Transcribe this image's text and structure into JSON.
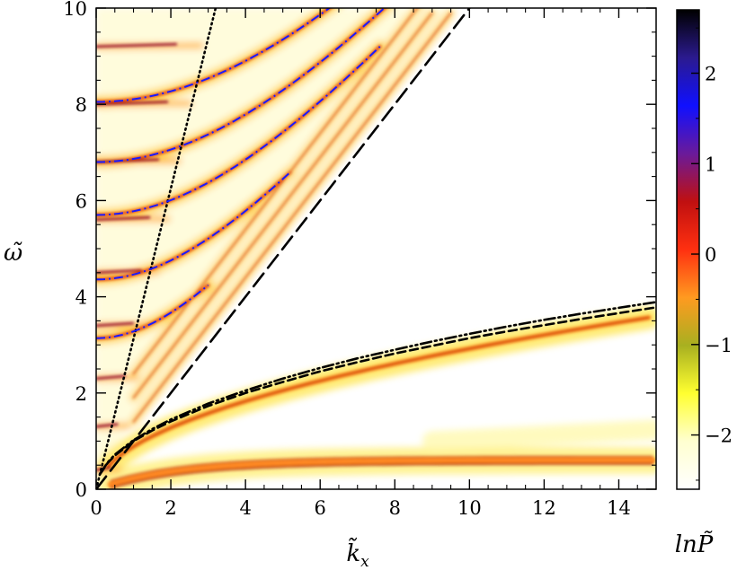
{
  "chart_data": {
    "type": "heatmap",
    "title": "",
    "xlabel": "k̃",
    "xlabel_subscript": "x",
    "ylabel": "ω̃",
    "colorbar_label": "lnP̃",
    "xlim": [
      0,
      15
    ],
    "ylim": [
      0,
      10
    ],
    "xticks": [
      "0",
      "2",
      "4",
      "6",
      "8",
      "10",
      "12",
      "14"
    ],
    "yticks": [
      "0",
      "2",
      "4",
      "6",
      "8",
      "10"
    ],
    "colorbar_range": [
      -2.6,
      2.7
    ],
    "colorbar_ticks": [
      "2",
      "1",
      "0",
      "−1",
      "−2"
    ],
    "colorbar_colors": [
      "#000000",
      "#2b1a8f",
      "#1010ff",
      "#6a1a9a",
      "#c01010",
      "#ff3010",
      "#ff9a20",
      "#a8b020",
      "#ffff30",
      "#ffffd0",
      "#ffffff"
    ],
    "series": [
      {
        "style": "dotted",
        "color": "#000000",
        "x": [
          0,
          3.2
        ],
        "y": [
          0,
          10
        ]
      },
      {
        "style": "long-dash",
        "color": "#000000",
        "x": [
          0,
          10,
          15
        ],
        "y": [
          0,
          10,
          15
        ]
      },
      {
        "style": "dash-dot-dot",
        "color": "#000000",
        "x": [
          0.1,
          0.3,
          0.5,
          1,
          1.5,
          2,
          3,
          4,
          5,
          6,
          7,
          8,
          9,
          10,
          11,
          12,
          13,
          14,
          15
        ],
        "y": [
          0.32,
          0.55,
          0.72,
          1.02,
          1.25,
          1.45,
          1.78,
          2.05,
          2.3,
          2.52,
          2.72,
          2.9,
          3.07,
          3.23,
          3.38,
          3.52,
          3.65,
          3.77,
          3.89
        ]
      },
      {
        "style": "dashed",
        "color": "#000000",
        "x": [
          0.1,
          0.3,
          0.5,
          1,
          1.5,
          2,
          3,
          4,
          5,
          6,
          7,
          8,
          9,
          10,
          11,
          12,
          13,
          14,
          15
        ],
        "y": [
          0.31,
          0.54,
          0.7,
          1.0,
          1.22,
          1.41,
          1.73,
          2.0,
          2.23,
          2.45,
          2.64,
          2.82,
          2.98,
          3.14,
          3.28,
          3.41,
          3.54,
          3.66,
          3.78
        ]
      },
      {
        "style": "dash-dot",
        "color": "#1a1aff",
        "modes_n": [
          1,
          2,
          3,
          4,
          5
        ],
        "mode_intercepts": [
          3.14,
          4.36,
          5.7,
          6.8,
          8.05
        ],
        "x_start": 0,
        "x_end": [
          3.0,
          5.2,
          7.6,
          9.3,
          9.9
        ]
      }
    ],
    "power_ridges": [
      {
        "kind": "f-mode-ridge",
        "x": [
          0.5,
          15
        ],
        "y": [
          0.7,
          3.35
        ]
      },
      {
        "kind": "low-frequency-band",
        "x": [
          0.5,
          15
        ],
        "y": [
          0.35,
          0.6
        ]
      },
      {
        "kind": "vertical-band-peaks-omega",
        "y": [
          0.4,
          1.3,
          2.3,
          3.4,
          4.5,
          5.6,
          6.8,
          8.0,
          9.2
        ]
      }
    ]
  }
}
